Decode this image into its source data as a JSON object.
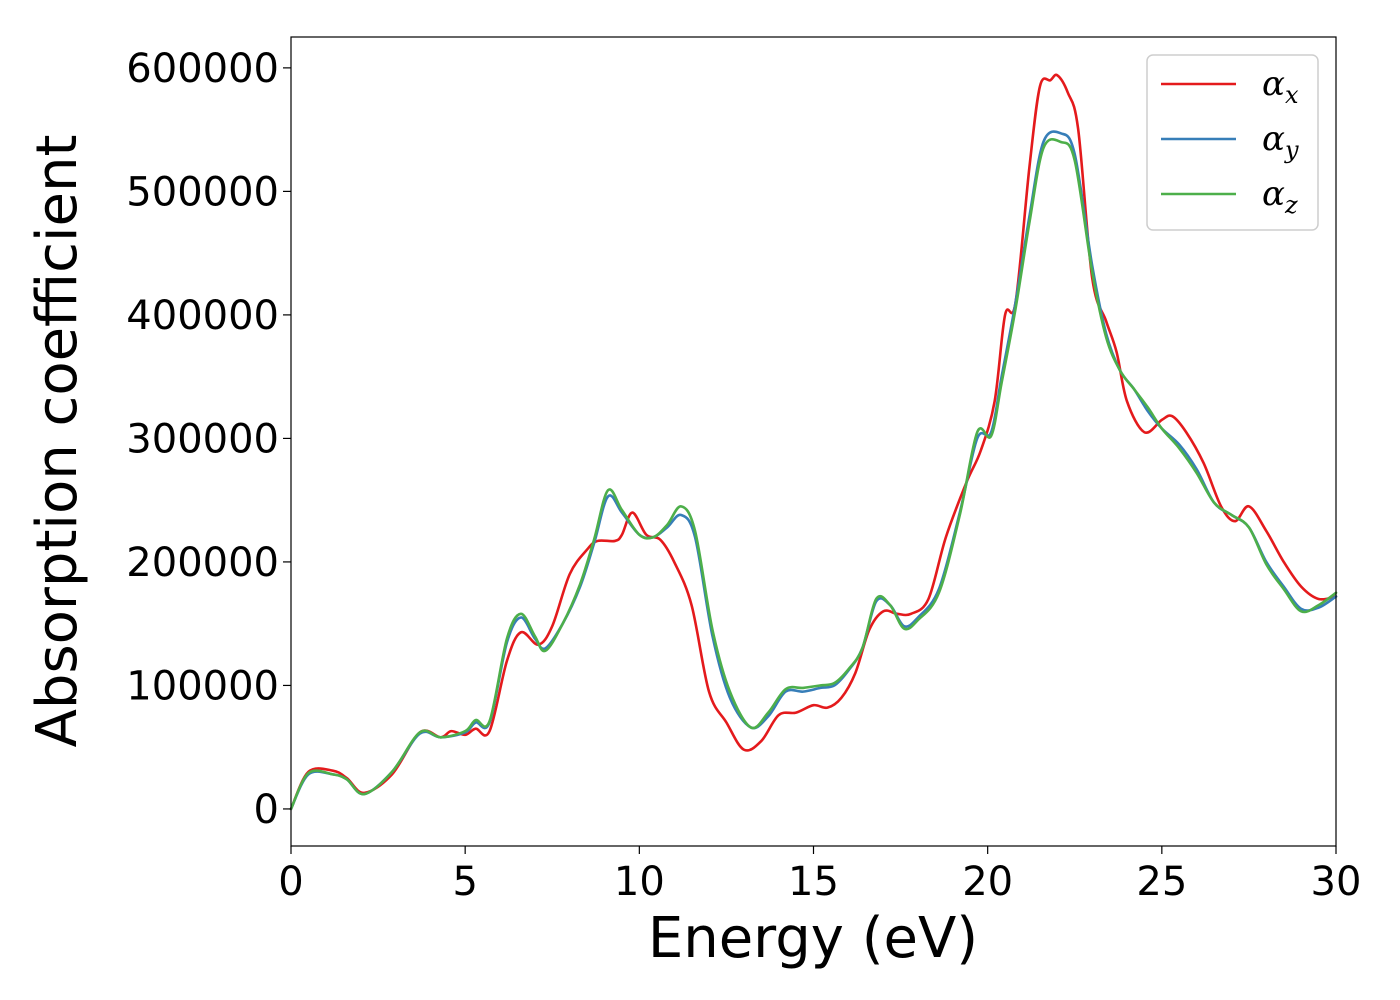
{
  "chart_data": {
    "type": "line",
    "xlabel": "Energy (eV)",
    "ylabel": "Absorption coefficient",
    "xlim": [
      0,
      30
    ],
    "ylim": [
      -30000,
      625000
    ],
    "xticks": [
      0,
      5,
      10,
      15,
      20,
      25,
      30
    ],
    "yticks": [
      0,
      100000,
      200000,
      300000,
      400000,
      500000,
      600000
    ],
    "grid": false,
    "legend_position": "top-right",
    "series": [
      {
        "name": "α_x",
        "symbol": "α",
        "subscript": "x",
        "color": "#e41a1c",
        "points": [
          [
            0,
            0
          ],
          [
            0.5,
            30000
          ],
          [
            1.2,
            31000
          ],
          [
            1.6,
            25000
          ],
          [
            2.1,
            13000
          ],
          [
            2.9,
            28000
          ],
          [
            3.7,
            62000
          ],
          [
            4.3,
            58000
          ],
          [
            4.6,
            63000
          ],
          [
            5.0,
            60000
          ],
          [
            5.3,
            65000
          ],
          [
            5.7,
            63000
          ],
          [
            6.2,
            120000
          ],
          [
            6.6,
            143000
          ],
          [
            7.1,
            133000
          ],
          [
            7.5,
            148000
          ],
          [
            8.0,
            190000
          ],
          [
            8.5,
            210000
          ],
          [
            8.8,
            217000
          ],
          [
            9.3,
            217000
          ],
          [
            9.5,
            222000
          ],
          [
            9.8,
            240000
          ],
          [
            10.2,
            222000
          ],
          [
            10.6,
            218000
          ],
          [
            11.0,
            200000
          ],
          [
            11.5,
            165000
          ],
          [
            12.0,
            95000
          ],
          [
            12.5,
            70000
          ],
          [
            13.0,
            48000
          ],
          [
            13.5,
            55000
          ],
          [
            14.0,
            76000
          ],
          [
            14.5,
            78000
          ],
          [
            15.0,
            84000
          ],
          [
            15.4,
            82000
          ],
          [
            15.8,
            90000
          ],
          [
            16.2,
            110000
          ],
          [
            16.6,
            145000
          ],
          [
            17.0,
            160000
          ],
          [
            17.4,
            158000
          ],
          [
            17.8,
            158000
          ],
          [
            18.3,
            170000
          ],
          [
            18.8,
            220000
          ],
          [
            19.4,
            265000
          ],
          [
            19.8,
            290000
          ],
          [
            20.2,
            330000
          ],
          [
            20.5,
            400000
          ],
          [
            20.8,
            410000
          ],
          [
            21.2,
            520000
          ],
          [
            21.5,
            585000
          ],
          [
            21.8,
            590000
          ],
          [
            22.0,
            594000
          ],
          [
            22.3,
            580000
          ],
          [
            22.6,
            550000
          ],
          [
            23.0,
            430000
          ],
          [
            23.4,
            395000
          ],
          [
            23.7,
            370000
          ],
          [
            24.0,
            330000
          ],
          [
            24.5,
            305000
          ],
          [
            25.0,
            315000
          ],
          [
            25.3,
            318000
          ],
          [
            25.7,
            305000
          ],
          [
            26.2,
            280000
          ],
          [
            26.7,
            245000
          ],
          [
            27.1,
            233000
          ],
          [
            27.5,
            245000
          ],
          [
            28.0,
            225000
          ],
          [
            28.5,
            200000
          ],
          [
            29.0,
            180000
          ],
          [
            29.5,
            170000
          ],
          [
            30.0,
            172000
          ]
        ]
      },
      {
        "name": "α_y",
        "symbol": "α",
        "subscript": "y",
        "color": "#377eb8",
        "points": [
          [
            0,
            0
          ],
          [
            0.5,
            28000
          ],
          [
            1.2,
            28000
          ],
          [
            1.6,
            24000
          ],
          [
            2.1,
            12000
          ],
          [
            2.9,
            30000
          ],
          [
            3.7,
            61000
          ],
          [
            4.3,
            58000
          ],
          [
            5.0,
            62000
          ],
          [
            5.3,
            70000
          ],
          [
            5.7,
            70000
          ],
          [
            6.2,
            135000
          ],
          [
            6.6,
            155000
          ],
          [
            7.0,
            138000
          ],
          [
            7.3,
            130000
          ],
          [
            7.8,
            150000
          ],
          [
            8.3,
            180000
          ],
          [
            8.7,
            215000
          ],
          [
            9.1,
            253000
          ],
          [
            9.5,
            240000
          ],
          [
            10.0,
            222000
          ],
          [
            10.4,
            220000
          ],
          [
            10.8,
            228000
          ],
          [
            11.2,
            238000
          ],
          [
            11.6,
            220000
          ],
          [
            12.1,
            140000
          ],
          [
            12.6,
            90000
          ],
          [
            13.2,
            66000
          ],
          [
            13.7,
            75000
          ],
          [
            14.2,
            95000
          ],
          [
            14.7,
            95000
          ],
          [
            15.2,
            98000
          ],
          [
            15.6,
            100000
          ],
          [
            16.0,
            112000
          ],
          [
            16.4,
            130000
          ],
          [
            16.8,
            168000
          ],
          [
            17.2,
            165000
          ],
          [
            17.6,
            148000
          ],
          [
            18.0,
            155000
          ],
          [
            18.6,
            178000
          ],
          [
            19.2,
            240000
          ],
          [
            19.7,
            300000
          ],
          [
            20.1,
            305000
          ],
          [
            20.4,
            350000
          ],
          [
            20.8,
            410000
          ],
          [
            21.2,
            480000
          ],
          [
            21.6,
            540000
          ],
          [
            22.1,
            547000
          ],
          [
            22.5,
            530000
          ],
          [
            23.0,
            440000
          ],
          [
            23.4,
            385000
          ],
          [
            23.8,
            355000
          ],
          [
            24.2,
            340000
          ],
          [
            24.6,
            322000
          ],
          [
            25.0,
            308000
          ],
          [
            25.5,
            295000
          ],
          [
            26.0,
            275000
          ],
          [
            26.5,
            248000
          ],
          [
            27.0,
            238000
          ],
          [
            27.5,
            228000
          ],
          [
            28.0,
            200000
          ],
          [
            28.5,
            180000
          ],
          [
            29.0,
            162000
          ],
          [
            29.5,
            163000
          ],
          [
            30.0,
            172000
          ]
        ]
      },
      {
        "name": "α_z",
        "symbol": "α",
        "subscript": "z",
        "color": "#4daf4a",
        "points": [
          [
            0,
            0
          ],
          [
            0.5,
            29000
          ],
          [
            1.2,
            28000
          ],
          [
            1.6,
            24000
          ],
          [
            2.1,
            12000
          ],
          [
            2.9,
            30000
          ],
          [
            3.7,
            62000
          ],
          [
            4.3,
            58000
          ],
          [
            5.0,
            63000
          ],
          [
            5.3,
            72000
          ],
          [
            5.7,
            71000
          ],
          [
            6.2,
            138000
          ],
          [
            6.6,
            158000
          ],
          [
            7.0,
            140000
          ],
          [
            7.3,
            128000
          ],
          [
            7.8,
            150000
          ],
          [
            8.3,
            182000
          ],
          [
            8.7,
            218000
          ],
          [
            9.1,
            258000
          ],
          [
            9.5,
            242000
          ],
          [
            10.0,
            222000
          ],
          [
            10.4,
            220000
          ],
          [
            10.8,
            230000
          ],
          [
            11.2,
            245000
          ],
          [
            11.6,
            225000
          ],
          [
            12.1,
            145000
          ],
          [
            12.6,
            95000
          ],
          [
            13.2,
            66000
          ],
          [
            13.7,
            78000
          ],
          [
            14.2,
            97000
          ],
          [
            14.7,
            98000
          ],
          [
            15.2,
            100000
          ],
          [
            15.6,
            102000
          ],
          [
            16.0,
            113000
          ],
          [
            16.4,
            130000
          ],
          [
            16.8,
            170000
          ],
          [
            17.2,
            165000
          ],
          [
            17.6,
            146000
          ],
          [
            18.0,
            153000
          ],
          [
            18.6,
            175000
          ],
          [
            19.2,
            238000
          ],
          [
            19.7,
            305000
          ],
          [
            20.1,
            302000
          ],
          [
            20.4,
            345000
          ],
          [
            20.8,
            405000
          ],
          [
            21.2,
            475000
          ],
          [
            21.6,
            535000
          ],
          [
            22.1,
            540000
          ],
          [
            22.5,
            525000
          ],
          [
            23.0,
            435000
          ],
          [
            23.4,
            382000
          ],
          [
            23.8,
            355000
          ],
          [
            24.2,
            340000
          ],
          [
            24.6,
            325000
          ],
          [
            25.0,
            308000
          ],
          [
            25.5,
            292000
          ],
          [
            26.0,
            272000
          ],
          [
            26.5,
            248000
          ],
          [
            27.0,
            238000
          ],
          [
            27.5,
            228000
          ],
          [
            28.0,
            198000
          ],
          [
            28.5,
            178000
          ],
          [
            29.0,
            160000
          ],
          [
            29.5,
            165000
          ],
          [
            30.0,
            175000
          ]
        ]
      }
    ]
  }
}
